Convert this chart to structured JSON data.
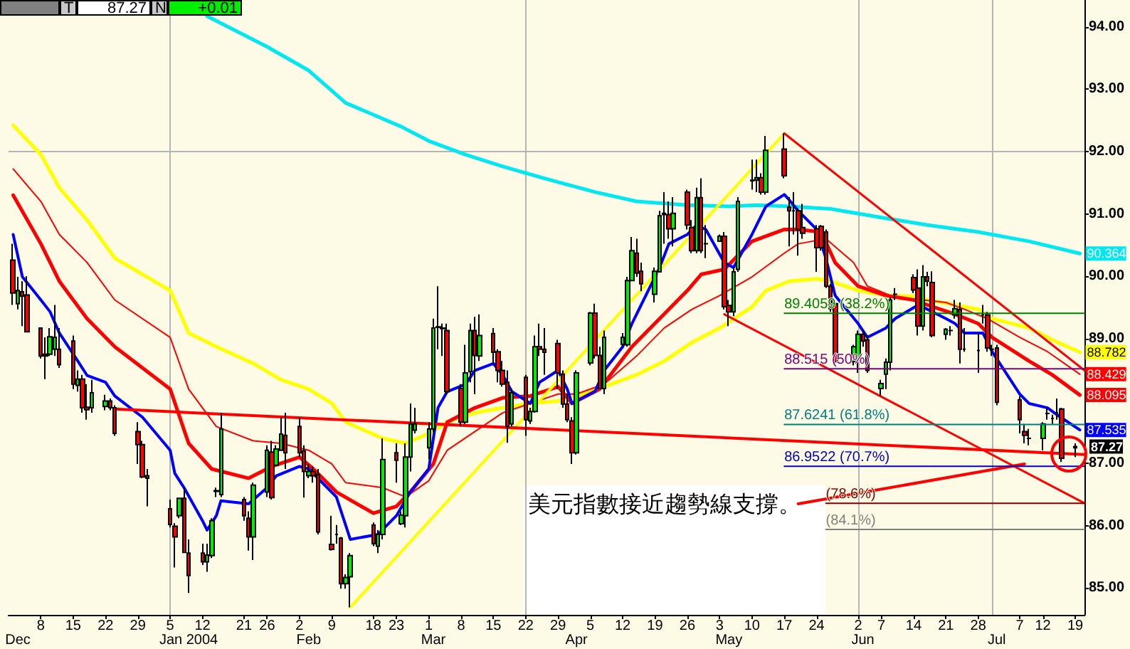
{
  "chart_data": {
    "type": "candlestick",
    "annotations": [
      "美元指數接近趨勢線支撐。",
      "T",
      "87.27",
      "N",
      "+0.01",
      {
        "text": "87.27",
        "x": "2004-07-19",
        "y": 87.27
      }
    ],
    "x": [
      "2003-12-02",
      "2003-12-03",
      "2003-12-04",
      "2003-12-05",
      "2003-12-08",
      "2003-12-09",
      "2003-12-10",
      "2003-12-11",
      "2003-12-12",
      "2003-12-15",
      "2003-12-16",
      "2003-12-17",
      "2003-12-18",
      "2003-12-19",
      "2003-12-22",
      "2003-12-23",
      "2003-12-24",
      "2003-12-29",
      "2003-12-30",
      "2003-12-31",
      "2004-01-05",
      "2004-01-06",
      "2004-01-07",
      "2004-01-08",
      "2004-01-09",
      "2004-01-12",
      "2004-01-13",
      "2004-01-14",
      "2004-01-15",
      "2004-01-16",
      "2004-01-21",
      "2004-01-22",
      "2004-01-23",
      "2004-01-26",
      "2004-01-27",
      "2004-01-28",
      "2004-01-29",
      "2004-01-30",
      "2004-02-02",
      "2004-02-03",
      "2004-02-04",
      "2004-02-05",
      "2004-02-06",
      "2004-02-09",
      "2004-02-10",
      "2004-02-11",
      "2004-02-12",
      "2004-02-13",
      "2004-02-18",
      "2004-02-19",
      "2004-02-20",
      "2004-02-23",
      "2004-02-24",
      "2004-02-25",
      "2004-02-26",
      "2004-02-27",
      "2004-03-01",
      "2004-03-02",
      "2004-03-03",
      "2004-03-04",
      "2004-03-05",
      "2004-03-08",
      "2004-03-09",
      "2004-03-10",
      "2004-03-11",
      "2004-03-12",
      "2004-03-15",
      "2004-03-16",
      "2004-03-17",
      "2004-03-18",
      "2004-03-19",
      "2004-03-22",
      "2004-03-23",
      "2004-03-24",
      "2004-03-25",
      "2004-03-26",
      "2004-03-29",
      "2004-03-30",
      "2004-03-31",
      "2004-04-01",
      "2004-04-02",
      "2004-04-05",
      "2004-04-06",
      "2004-04-07",
      "2004-04-08",
      "2004-04-12",
      "2004-04-13",
      "2004-04-14",
      "2004-04-15",
      "2004-04-16",
      "2004-04-19",
      "2004-04-20",
      "2004-04-21",
      "2004-04-22",
      "2004-04-23",
      "2004-04-26",
      "2004-04-27",
      "2004-04-28",
      "2004-04-29",
      "2004-04-30",
      "2004-05-03",
      "2004-05-04",
      "2004-05-05",
      "2004-05-06",
      "2004-05-07",
      "2004-05-10",
      "2004-05-11",
      "2004-05-12",
      "2004-05-13",
      "2004-05-17",
      "2004-05-18",
      "2004-05-19",
      "2004-05-20",
      "2004-05-21",
      "2004-05-24",
      "2004-05-25",
      "2004-05-26",
      "2004-05-27",
      "2004-05-28",
      "2004-06-01",
      "2004-06-02",
      "2004-06-03",
      "2004-06-04",
      "2004-06-07",
      "2004-06-08",
      "2004-06-09",
      "2004-06-10",
      "2004-06-14",
      "2004-06-15",
      "2004-06-16",
      "2004-06-17",
      "2004-06-18",
      "2004-06-21",
      "2004-06-22",
      "2004-06-23",
      "2004-06-24",
      "2004-06-25",
      "2004-06-28",
      "2004-06-29",
      "2004-06-30",
      "2004-07-01",
      "2004-07-02",
      "2004-07-07",
      "2004-07-08",
      "2004-07-09",
      "2004-07-12",
      "2004-07-13",
      "2004-07-14",
      "2004-07-15",
      "2004-07-16",
      "2004-07-19"
    ],
    "ohlc": [
      [
        90.26,
        90.52,
        89.54,
        89.73
      ],
      [
        89.56,
        89.99,
        89.47,
        89.77
      ],
      [
        89.75,
        89.92,
        89.2,
        89.68
      ],
      [
        89.7,
        90.0,
        89.1,
        89.11
      ],
      [
        89.17,
        89.17,
        88.68,
        88.72
      ],
      [
        88.75,
        89.02,
        88.35,
        88.72
      ],
      [
        88.75,
        89.17,
        88.72,
        89.03
      ],
      [
        88.83,
        89.54,
        88.72,
        89.02
      ],
      [
        88.83,
        89.17,
        88.53,
        88.58
      ],
      [
        88.96,
        89.05,
        88.19,
        88.27
      ],
      [
        88.25,
        88.49,
        88.15,
        88.35
      ],
      [
        88.35,
        88.42,
        87.81,
        87.89
      ],
      [
        87.9,
        88.27,
        87.7,
        87.86
      ],
      [
        87.89,
        88.34,
        87.81,
        88.13
      ],
      [
        87.91,
        88.1,
        87.85,
        88.0
      ],
      [
        88.0,
        88.04,
        87.85,
        87.89
      ],
      [
        87.89,
        87.93,
        87.44,
        87.48
      ],
      [
        87.51,
        87.66,
        86.99,
        87.3
      ],
      [
        87.3,
        87.36,
        86.76,
        86.78
      ],
      [
        86.8,
        86.91,
        86.31,
        86.76
      ],
      [
        86.27,
        86.42,
        85.97,
        86.02
      ],
      [
        85.99,
        86.04,
        85.33,
        85.82
      ],
      [
        86.16,
        86.45,
        86.12,
        86.44
      ],
      [
        86.44,
        86.61,
        85.56,
        85.57
      ],
      [
        85.56,
        85.78,
        84.92,
        85.2
      ],
      [
        85.56,
        85.71,
        85.37,
        85.42
      ],
      [
        85.42,
        85.71,
        85.26,
        85.53
      ],
      [
        85.52,
        86.12,
        85.48,
        86.08
      ],
      [
        86.55,
        86.61,
        86.46,
        86.56
      ],
      [
        86.5,
        87.81,
        86.46,
        87.55
      ],
      [
        86.42,
        86.46,
        86.08,
        86.16
      ],
      [
        86.12,
        86.23,
        85.6,
        85.82
      ],
      [
        85.82,
        86.69,
        85.45,
        86.65
      ],
      [
        86.54,
        87.29,
        86.46,
        87.21
      ],
      [
        87.18,
        87.36,
        86.42,
        86.45
      ],
      [
        86.97,
        87.29,
        86.97,
        87.23
      ],
      [
        87.21,
        87.74,
        87.2,
        87.47
      ],
      [
        87.45,
        87.81,
        86.91,
        87.17
      ],
      [
        87.59,
        87.74,
        87.1,
        87.17
      ],
      [
        87.2,
        87.29,
        86.45,
        86.87
      ],
      [
        86.8,
        86.99,
        86.76,
        86.87
      ],
      [
        86.87,
        86.95,
        86.69,
        86.8
      ],
      [
        86.82,
        86.91,
        85.86,
        85.9
      ],
      [
        85.7,
        86.16,
        85.6,
        85.62
      ],
      [
        85.86,
        86.01,
        85.71,
        85.86
      ],
      [
        85.8,
        85.82,
        84.99,
        85.07
      ],
      [
        85.07,
        85.22,
        84.99,
        85.17
      ],
      [
        85.18,
        85.56,
        84.69,
        85.52
      ],
      [
        86.01,
        86.05,
        85.67,
        85.71
      ],
      [
        85.67,
        85.93,
        85.56,
        85.86
      ],
      [
        85.86,
        87.4,
        85.78,
        87.06
      ],
      [
        87.17,
        87.32,
        86.69,
        87.05
      ],
      [
        86.03,
        86.23,
        86.01,
        86.17
      ],
      [
        86.16,
        87.32,
        85.97,
        87.1
      ],
      [
        87.1,
        87.96,
        86.87,
        87.63
      ],
      [
        87.53,
        87.89,
        87.48,
        87.63
      ],
      [
        87.25,
        87.66,
        87.06,
        87.55
      ],
      [
        87.55,
        89.32,
        87.51,
        89.17
      ],
      [
        89.18,
        89.84,
        88.83,
        89.19
      ],
      [
        89.17,
        89.24,
        88.72,
        89.16
      ],
      [
        89.13,
        89.24,
        88.11,
        88.15
      ],
      [
        88.2,
        88.27,
        87.59,
        87.66
      ],
      [
        87.66,
        88.9,
        87.63,
        88.45
      ],
      [
        88.47,
        89.24,
        88.3,
        89.13
      ],
      [
        89.13,
        89.35,
        88.11,
        88.73
      ],
      [
        88.72,
        89.39,
        88.64,
        89.05
      ],
      [
        89.08,
        89.17,
        88.6,
        88.78
      ],
      [
        88.79,
        88.83,
        88.3,
        88.49
      ],
      [
        88.49,
        88.64,
        88.23,
        88.27
      ],
      [
        88.3,
        88.49,
        87.33,
        87.59
      ],
      [
        87.63,
        88.19,
        87.59,
        88.13
      ],
      [
        88.38,
        88.42,
        87.44,
        87.7
      ],
      [
        87.68,
        87.89,
        87.63,
        87.83
      ],
      [
        87.83,
        89.05,
        87.81,
        88.87
      ],
      [
        88.87,
        89.24,
        88.72,
        88.83
      ],
      [
        88.83,
        89.17,
        88.42,
        88.78
      ],
      [
        88.92,
        88.98,
        88.19,
        88.45
      ],
      [
        88.43,
        88.49,
        87.89,
        87.95
      ],
      [
        87.95,
        88.12,
        87.66,
        87.7
      ],
      [
        87.68,
        87.74,
        86.99,
        87.17
      ],
      [
        87.17,
        88.49,
        87.14,
        88.45
      ],
      [
        88.61,
        89.43,
        88.57,
        89.41
      ],
      [
        89.41,
        89.56,
        88.68,
        88.73
      ],
      [
        88.73,
        88.87,
        88.19,
        88.2
      ],
      [
        88.2,
        89.13,
        88.11,
        89.02
      ],
      [
        88.91,
        89.09,
        88.87,
        89.02
      ],
      [
        88.9,
        89.99,
        88.87,
        89.93
      ],
      [
        89.93,
        90.63,
        89.92,
        90.41
      ],
      [
        90.37,
        90.6,
        89.99,
        90.05
      ],
      [
        90.08,
        90.22,
        89.76,
        89.88
      ],
      [
        89.71,
        90.14,
        89.58,
        90.08
      ],
      [
        90.07,
        91.05,
        90.06,
        90.97
      ],
      [
        90.99,
        91.35,
        90.52,
        91.01
      ],
      [
        90.99,
        91.2,
        90.6,
        90.76
      ],
      [
        90.76,
        91.27,
        90.48,
        91.01
      ],
      [
        91.35,
        91.39,
        90.75,
        90.82
      ],
      [
        90.78,
        90.9,
        90.37,
        90.41
      ],
      [
        90.41,
        91.42,
        90.37,
        91.26
      ],
      [
        91.26,
        91.57,
        90.37,
        90.41
      ],
      [
        90.52,
        90.82,
        90.29,
        90.52
      ],
      [
        90.56,
        90.67,
        90.55,
        90.64
      ],
      [
        90.64,
        90.71,
        89.47,
        89.51
      ],
      [
        89.53,
        89.62,
        89.2,
        89.43
      ],
      [
        89.43,
        90.14,
        89.36,
        90.07
      ],
      [
        90.11,
        91.27,
        90.07,
        91.2
      ],
      [
        91.53,
        91.87,
        91.39,
        91.54
      ],
      [
        91.54,
        91.87,
        91.35,
        91.58
      ],
      [
        91.58,
        91.65,
        91.31,
        91.35
      ],
      [
        91.35,
        92.25,
        91.31,
        92.02
      ],
      [
        92.04,
        92.29,
        91.57,
        91.61
      ],
      [
        91.11,
        91.27,
        90.48,
        91.05
      ],
      [
        91.05,
        91.35,
        90.67,
        91.05
      ],
      [
        91.05,
        91.09,
        90.33,
        90.75
      ],
      [
        90.78,
        91.16,
        90.6,
        90.69
      ],
      [
        90.76,
        90.82,
        90.07,
        90.46
      ],
      [
        90.8,
        90.82,
        90.41,
        90.46
      ],
      [
        90.71,
        90.75,
        89.81,
        89.84
      ],
      [
        89.84,
        89.88,
        89.43,
        89.48
      ],
      [
        89.56,
        89.58,
        88.58,
        88.63
      ],
      [
        88.63,
        88.9,
        88.57,
        88.87
      ],
      [
        88.66,
        89.13,
        88.45,
        89.07
      ],
      [
        89.07,
        89.13,
        88.87,
        88.96
      ],
      [
        88.98,
        89.05,
        88.45,
        88.49
      ],
      [
        88.2,
        88.34,
        88.08,
        88.28
      ],
      [
        88.43,
        88.68,
        88.19,
        88.62
      ],
      [
        88.62,
        89.66,
        88.49,
        89.62
      ],
      [
        89.71,
        89.81,
        89.62,
        89.71
      ],
      [
        89.98,
        90.03,
        89.73,
        89.78
      ],
      [
        89.81,
        90.11,
        89.05,
        89.2
      ],
      [
        89.2,
        90.18,
        89.13,
        89.99
      ],
      [
        89.99,
        90.07,
        89.84,
        89.92
      ],
      [
        89.9,
        90.08,
        89.02,
        89.05
      ],
      [
        89.07,
        89.17,
        88.98,
        89.15
      ],
      [
        89.13,
        89.2,
        89.05,
        89.13
      ],
      [
        89.38,
        89.62,
        89.32,
        89.48
      ],
      [
        89.47,
        89.58,
        88.6,
        88.83
      ],
      [
        88.83,
        89.17,
        88.79,
        88.83
      ],
      [
        88.81,
        89.09,
        88.45,
        88.81
      ],
      [
        89.38,
        89.54,
        89.24,
        89.38
      ],
      [
        89.38,
        89.43,
        88.79,
        88.85
      ],
      [
        88.83,
        88.9,
        88.72,
        88.83
      ],
      [
        88.85,
        88.9,
        87.93,
        87.98
      ],
      [
        88.02,
        88.08,
        87.48,
        87.7
      ],
      [
        87.51,
        87.63,
        87.32,
        87.45
      ],
      [
        87.4,
        87.55,
        87.29,
        87.4
      ],
      [
        87.4,
        87.66,
        87.21,
        87.63
      ],
      [
        87.8,
        87.89,
        87.7,
        87.8
      ],
      [
        87.72,
        87.78,
        87.63,
        87.72
      ],
      [
        87.81,
        88.04,
        87.7,
        87.81
      ],
      [
        87.87,
        87.89,
        87.02,
        87.08
      ],
      [
        87.25,
        87.32,
        87.1,
        87.27
      ]
    ],
    "xlim": [
      "2003-12-01",
      "2004-07-21"
    ],
    "xticks": [
      {
        "value": "2003-12-08",
        "label": "8"
      },
      {
        "value": "2003-12-15",
        "label": "15"
      },
      {
        "value": "2003-12-22",
        "label": "22"
      },
      {
        "value": "2003-12-29",
        "label": "29"
      },
      {
        "value": "2004-01-05",
        "label": "5"
      },
      {
        "value": "2004-01-12",
        "label": "12"
      },
      {
        "value": "2004-01-21",
        "label": "21"
      },
      {
        "value": "2004-01-26",
        "label": "26"
      },
      {
        "value": "2004-02-02",
        "label": "2"
      },
      {
        "value": "2004-02-09",
        "label": "9"
      },
      {
        "value": "2004-02-18",
        "label": "18"
      },
      {
        "value": "2004-02-23",
        "label": "23"
      },
      {
        "value": "2004-03-01",
        "label": "1"
      },
      {
        "value": "2004-03-08",
        "label": "8"
      },
      {
        "value": "2004-03-15",
        "label": "15"
      },
      {
        "value": "2004-03-22",
        "label": "22"
      },
      {
        "value": "2004-03-29",
        "label": "29"
      },
      {
        "value": "2004-04-05",
        "label": "5"
      },
      {
        "value": "2004-04-12",
        "label": "12"
      },
      {
        "value": "2004-04-19",
        "label": "19"
      },
      {
        "value": "2004-04-26",
        "label": "26"
      },
      {
        "value": "2004-05-03",
        "label": "3"
      },
      {
        "value": "2004-05-10",
        "label": "10"
      },
      {
        "value": "2004-05-17",
        "label": "17"
      },
      {
        "value": "2004-05-24",
        "label": "24"
      },
      {
        "value": "2004-06-02",
        "label": "2"
      },
      {
        "value": "2004-06-07",
        "label": "7"
      },
      {
        "value": "2004-06-14",
        "label": "14"
      },
      {
        "value": "2004-06-21",
        "label": "21"
      },
      {
        "value": "2004-06-28",
        "label": "28"
      },
      {
        "value": "2004-07-07",
        "label": "7"
      },
      {
        "value": "2004-07-12",
        "label": "12"
      },
      {
        "value": "2004-07-19",
        "label": "19"
      }
    ],
    "x2lim": [
      "2003-12-01",
      "2004-07-21"
    ],
    "x2ticks": [
      {
        "value": "2003-12-03",
        "label": "Dec"
      },
      {
        "value": "2004-01-09",
        "label": "Jan 2004"
      },
      {
        "value": "2004-02-04",
        "label": "Feb"
      },
      {
        "value": "2004-03-02",
        "label": "Mar"
      },
      {
        "value": "2004-04-02",
        "label": "Apr"
      },
      {
        "value": "2004-05-05",
        "label": "May"
      },
      {
        "value": "2004-06-03",
        "label": "Jun"
      },
      {
        "value": "2004-07-02",
        "label": "Jul"
      }
    ],
    "ylim": [
      84.57,
      94.43
    ],
    "yticks": [
      {
        "value": 85,
        "label": "85.00"
      },
      {
        "value": 86,
        "label": "86.00"
      },
      {
        "value": 87,
        "label": "87.00"
      },
      {
        "value": 89,
        "label": "89.00"
      },
      {
        "value": 90,
        "label": "90.00"
      },
      {
        "value": 91,
        "label": "91.00"
      },
      {
        "value": 92,
        "label": "92.00"
      },
      {
        "value": 93,
        "label": "93.00"
      },
      {
        "value": 94,
        "label": "94.00"
      }
    ],
    "grid": false,
    "ref_lines": [
      {
        "axis": "y",
        "value": 92,
        "color": "#b4b4b4"
      },
      {
        "axis": "x",
        "value": "2004-01-05",
        "color": "#b4b4b4"
      },
      {
        "axis": "x",
        "value": "2004-03-22",
        "color": "#b4b4b4"
      },
      {
        "axis": "x",
        "value": "2004-06-02",
        "color": "#b4b4b4"
      },
      {
        "axis": "x",
        "value": "2004-07-01",
        "color": "#b4b4b4"
      }
    ],
    "series": [
      {
        "type": "line",
        "color": "#00e8f0",
        "x": [
          "2004-01-13",
          "2004-01-26",
          "2004-02-04",
          "2004-02-12",
          "2004-02-24",
          "2004-03-01",
          "2004-03-09",
          "2004-03-17",
          "2004-03-26",
          "2004-04-06",
          "2004-04-15",
          "2004-04-26",
          "2004-05-05",
          "2004-05-11",
          "2004-05-18",
          "2004-05-27",
          "2004-06-08",
          "2004-06-17",
          "2004-06-28",
          "2004-07-09",
          "2004-07-20"
        ],
        "values": [
          94.17,
          93.68,
          93.3,
          92.78,
          92.4,
          92.17,
          91.95,
          91.76,
          91.57,
          91.35,
          91.2,
          91.14,
          91.12,
          91.14,
          91.12,
          91.08,
          90.93,
          90.82,
          90.71,
          90.56,
          90.364
        ],
        "value_labels": [
          null,
          null,
          null,
          null,
          null,
          null,
          null,
          null,
          null,
          null,
          null,
          null,
          null,
          null,
          null,
          null,
          null,
          null,
          null,
          null,
          "90.364"
        ]
      },
      {
        "type": "line",
        "color": "#ffff00",
        "x": [
          "2003-12-02",
          "2003-12-08",
          "2003-12-12",
          "2003-12-18",
          "2003-12-24",
          "2004-01-05",
          "2004-01-09",
          "2004-01-15",
          "2004-01-23",
          "2004-01-29",
          "2004-02-04",
          "2004-02-09",
          "2004-02-12",
          "2004-02-20",
          "2004-02-25",
          "2004-03-01",
          "2004-03-05",
          "2004-03-11",
          "2004-03-17",
          "2004-03-23",
          "2004-03-29",
          "2004-04-02",
          "2004-04-08",
          "2004-04-15",
          "2004-04-21",
          "2004-04-27",
          "2004-05-03",
          "2004-05-10",
          "2004-05-13",
          "2004-05-18",
          "2004-05-24",
          "2004-05-27",
          "2004-06-02",
          "2004-06-08",
          "2004-06-14",
          "2004-06-17",
          "2004-06-23",
          "2004-06-28",
          "2004-07-01",
          "2004-07-09",
          "2004-07-14",
          "2004-07-20"
        ],
        "values": [
          92.42,
          91.95,
          91.42,
          90.9,
          90.29,
          89.77,
          89.09,
          88.87,
          88.6,
          88.34,
          88.19,
          87.96,
          87.66,
          87.4,
          87.32,
          87.48,
          87.66,
          87.81,
          87.89,
          87.96,
          88.0,
          88.08,
          88.23,
          88.42,
          88.64,
          88.94,
          89.17,
          89.51,
          89.77,
          89.92,
          89.96,
          89.92,
          89.77,
          89.69,
          89.68,
          89.62,
          89.54,
          89.47,
          89.32,
          89.17,
          88.98,
          88.782
        ],
        "value_labels": [
          null,
          null,
          null,
          null,
          null,
          null,
          null,
          null,
          null,
          null,
          null,
          null,
          null,
          null,
          null,
          null,
          null,
          null,
          null,
          null,
          null,
          null,
          null,
          null,
          null,
          null,
          null,
          null,
          null,
          null,
          null,
          null,
          null,
          null,
          null,
          null,
          null,
          null,
          null,
          null,
          null,
          "88.782"
        ]
      },
      {
        "type": "line",
        "color": "#ff0000",
        "x": [
          "2003-12-02",
          "2003-12-08",
          "2003-12-12",
          "2003-12-18",
          "2003-12-24",
          "2004-01-05",
          "2004-01-09",
          "2004-01-15",
          "2004-01-23",
          "2004-01-29",
          "2004-02-04",
          "2004-02-09",
          "2004-02-12",
          "2004-02-20",
          "2004-02-25",
          "2004-03-01",
          "2004-03-05",
          "2004-03-11",
          "2004-03-17",
          "2004-03-23",
          "2004-03-29",
          "2004-04-02",
          "2004-04-08",
          "2004-04-15",
          "2004-04-21",
          "2004-04-27",
          "2004-05-03",
          "2004-05-10",
          "2004-05-17",
          "2004-05-20",
          "2004-05-26",
          "2004-06-01",
          "2004-06-04",
          "2004-06-10",
          "2004-06-16",
          "2004-06-21",
          "2004-06-25",
          "2004-06-30",
          "2004-07-07",
          "2004-07-13",
          "2004-07-20"
        ],
        "values": [
          91.72,
          91.2,
          90.67,
          90.22,
          89.62,
          89.02,
          88.19,
          87.59,
          87.36,
          87.32,
          87.21,
          86.99,
          86.69,
          86.61,
          86.46,
          86.72,
          87.21,
          87.51,
          87.81,
          87.96,
          88.11,
          88.11,
          88.27,
          88.72,
          89.17,
          89.47,
          89.69,
          89.99,
          90.37,
          90.52,
          90.6,
          90.22,
          89.84,
          89.66,
          89.62,
          89.58,
          89.47,
          89.32,
          89.02,
          88.79,
          88.429
        ],
        "value_labels": [
          null,
          null,
          null,
          null,
          null,
          null,
          null,
          null,
          null,
          null,
          null,
          null,
          null,
          null,
          null,
          null,
          null,
          null,
          null,
          null,
          null,
          null,
          null,
          null,
          null,
          null,
          null,
          null,
          null,
          null,
          null,
          null,
          null,
          null,
          null,
          null,
          null,
          null,
          null,
          null,
          "88.429"
        ]
      },
      {
        "type": "line",
        "color": "#ff0000",
        "x": [
          "2003-12-02",
          "2003-12-08",
          "2003-12-12",
          "2003-12-18",
          "2003-12-24",
          "2004-01-05",
          "2004-01-09",
          "2004-01-14",
          "2004-01-22",
          "2004-01-27",
          "2004-02-02",
          "2004-02-05",
          "2004-02-10",
          "2004-02-18",
          "2004-02-23",
          "2004-02-26",
          "2004-03-02",
          "2004-03-05",
          "2004-03-11",
          "2004-03-17",
          "2004-03-23",
          "2004-03-29",
          "2004-04-01",
          "2004-04-07",
          "2004-04-14",
          "2004-04-20",
          "2004-04-26",
          "2004-04-29",
          "2004-05-04",
          "2004-05-10",
          "2004-05-17",
          "2004-05-20",
          "2004-05-25",
          "2004-05-28",
          "2004-06-02",
          "2004-06-08",
          "2004-06-14",
          "2004-06-17",
          "2004-06-23",
          "2004-06-28",
          "2004-07-01",
          "2004-07-09",
          "2004-07-14",
          "2004-07-20"
        ],
        "values": [
          91.3,
          90.52,
          89.92,
          89.32,
          88.87,
          88.19,
          87.32,
          86.91,
          86.76,
          86.95,
          87.1,
          86.91,
          86.54,
          86.2,
          86.31,
          86.54,
          86.99,
          87.66,
          87.89,
          88.05,
          88.08,
          88.23,
          87.96,
          88.19,
          88.87,
          89.32,
          89.77,
          90.03,
          90.11,
          90.56,
          90.75,
          90.75,
          90.71,
          90.22,
          89.84,
          89.69,
          89.62,
          89.54,
          89.39,
          89.24,
          89.02,
          88.64,
          88.42,
          88.095
        ],
        "value_labels": [
          null,
          null,
          null,
          null,
          null,
          null,
          null,
          null,
          null,
          null,
          null,
          null,
          null,
          null,
          null,
          null,
          null,
          null,
          null,
          null,
          null,
          null,
          null,
          null,
          null,
          null,
          null,
          null,
          null,
          null,
          null,
          null,
          null,
          null,
          null,
          null,
          null,
          null,
          null,
          null,
          null,
          null,
          null,
          "88.095"
        ]
      },
      {
        "type": "line",
        "color": "#0000ff",
        "x": [
          "2003-12-02",
          "2003-12-04",
          "2003-12-08",
          "2003-12-10",
          "2003-12-12",
          "2003-12-16",
          "2003-12-18",
          "2003-12-22",
          "2003-12-24",
          "2003-12-30",
          "2004-01-05",
          "2004-01-06",
          "2004-01-08",
          "2004-01-12",
          "2004-01-13",
          "2004-01-15",
          "2004-01-16",
          "2004-01-22",
          "2004-01-26",
          "2004-01-28",
          "2004-02-02",
          "2004-02-04",
          "2004-02-06",
          "2004-02-10",
          "2004-02-12",
          "2004-02-13",
          "2004-02-19",
          "2004-02-23",
          "2004-02-26",
          "2004-03-01",
          "2004-03-03",
          "2004-03-05",
          "2004-03-09",
          "2004-03-11",
          "2004-03-15",
          "2004-03-17",
          "2004-03-19",
          "2004-03-23",
          "2004-03-25",
          "2004-03-29",
          "2004-03-31",
          "2004-04-01",
          "2004-04-06",
          "2004-04-08",
          "2004-04-12",
          "2004-04-14",
          "2004-04-16",
          "2004-04-20",
          "2004-04-22",
          "2004-04-26",
          "2004-04-28",
          "2004-04-30",
          "2004-05-04",
          "2004-05-06",
          "2004-05-10",
          "2004-05-13",
          "2004-05-17",
          "2004-05-18",
          "2004-05-20",
          "2004-05-24",
          "2004-05-26",
          "2004-05-28",
          "2004-06-02",
          "2004-06-04",
          "2004-06-08",
          "2004-06-10",
          "2004-06-15",
          "2004-06-17",
          "2004-06-21",
          "2004-06-23",
          "2004-06-25",
          "2004-06-29",
          "2004-07-01",
          "2004-07-07",
          "2004-07-09",
          "2004-07-13",
          "2004-07-15",
          "2004-07-20"
        ],
        "values": [
          90.67,
          89.99,
          89.62,
          89.43,
          89.09,
          88.64,
          88.41,
          88.3,
          88.08,
          87.74,
          87.21,
          86.84,
          86.61,
          86.08,
          85.93,
          86.16,
          86.4,
          86.35,
          86.61,
          86.8,
          86.95,
          86.91,
          86.76,
          86.46,
          86.01,
          85.78,
          85.86,
          86.16,
          86.54,
          86.91,
          87.89,
          88.15,
          88.27,
          88.49,
          88.6,
          88.42,
          88.15,
          87.96,
          88.3,
          88.49,
          88.19,
          87.96,
          88.15,
          88.49,
          88.87,
          89.24,
          89.54,
          90.14,
          90.52,
          90.67,
          90.82,
          90.75,
          90.22,
          90.14,
          90.67,
          91.12,
          91.31,
          91.23,
          91.05,
          90.75,
          90.29,
          89.69,
          89.24,
          89.02,
          89.17,
          89.32,
          89.54,
          89.47,
          89.32,
          89.24,
          89.09,
          89.09,
          88.79,
          88.11,
          87.96,
          87.89,
          87.78,
          87.535
        ],
        "value_labels": [
          null,
          null,
          null,
          null,
          null,
          null,
          null,
          null,
          null,
          null,
          null,
          null,
          null,
          null,
          null,
          null,
          null,
          null,
          null,
          null,
          null,
          null,
          null,
          null,
          null,
          null,
          null,
          null,
          null,
          null,
          null,
          null,
          null,
          null,
          null,
          null,
          null,
          null,
          null,
          null,
          null,
          null,
          null,
          null,
          null,
          null,
          null,
          null,
          null,
          null,
          null,
          null,
          null,
          null,
          null,
          null,
          null,
          null,
          null,
          null,
          null,
          null,
          null,
          null,
          null,
          null,
          null,
          null,
          null,
          null,
          null,
          null,
          null,
          null,
          null,
          null,
          null,
          "87.535"
        ]
      },
      {
        "type": "line",
        "color": "#ffff00",
        "x": [
          "2004-02-13",
          "2004-05-17"
        ],
        "values": [
          84.69,
          92.29
        ]
      },
      {
        "type": "line",
        "color": "#ff0000",
        "x": [
          "2003-12-24",
          "2004-07-21"
        ],
        "values": [
          87.87,
          87.14
        ]
      },
      {
        "type": "line",
        "color": "#ff0000",
        "x": [
          "2004-05-17",
          "2004-07-21"
        ],
        "values": [
          92.29,
          88.49
        ]
      },
      {
        "type": "line",
        "color": "#ff0000",
        "x": [
          "2004-05-04",
          "2004-07-21"
        ],
        "values": [
          89.39,
          86.36
        ]
      },
      {
        "type": "line",
        "color": "#ff0000",
        "x": [
          "2004-05-20",
          "2004-07-08"
        ],
        "values": [
          86.35,
          86.99
        ]
      },
      {
        "type": "line",
        "name": "89.4059 (38.2%)",
        "color": "#008000",
        "x": [
          "2004-05-17",
          "2004-07-21"
        ],
        "values": [
          89.4059,
          89.4059
        ]
      },
      {
        "type": "line",
        "name": "88.515 (50%)",
        "color": "#800080",
        "x": [
          "2004-05-17",
          "2004-07-21"
        ],
        "values": [
          88.515,
          88.515
        ]
      },
      {
        "type": "line",
        "name": "87.6241 (61.8%)",
        "color": "#008080",
        "x": [
          "2004-05-17",
          "2004-07-21"
        ],
        "values": [
          87.6241,
          87.6241
        ]
      },
      {
        "type": "line",
        "name": "86.9522 (70.7%)",
        "color": "#0000c0",
        "x": [
          "2004-05-17",
          "2004-07-21"
        ],
        "values": [
          86.9522,
          86.9522
        ]
      },
      {
        "type": "line",
        "name": "(78.6%)",
        "color": "#800000",
        "x": [
          "2004-05-26",
          "2004-07-21"
        ],
        "values": [
          86.36,
          86.36
        ]
      },
      {
        "type": "line",
        "name": "(84.1%)",
        "color": "#808080",
        "x": [
          "2004-05-26",
          "2004-07-21"
        ],
        "values": [
          85.94,
          85.94
        ]
      }
    ]
  }
}
